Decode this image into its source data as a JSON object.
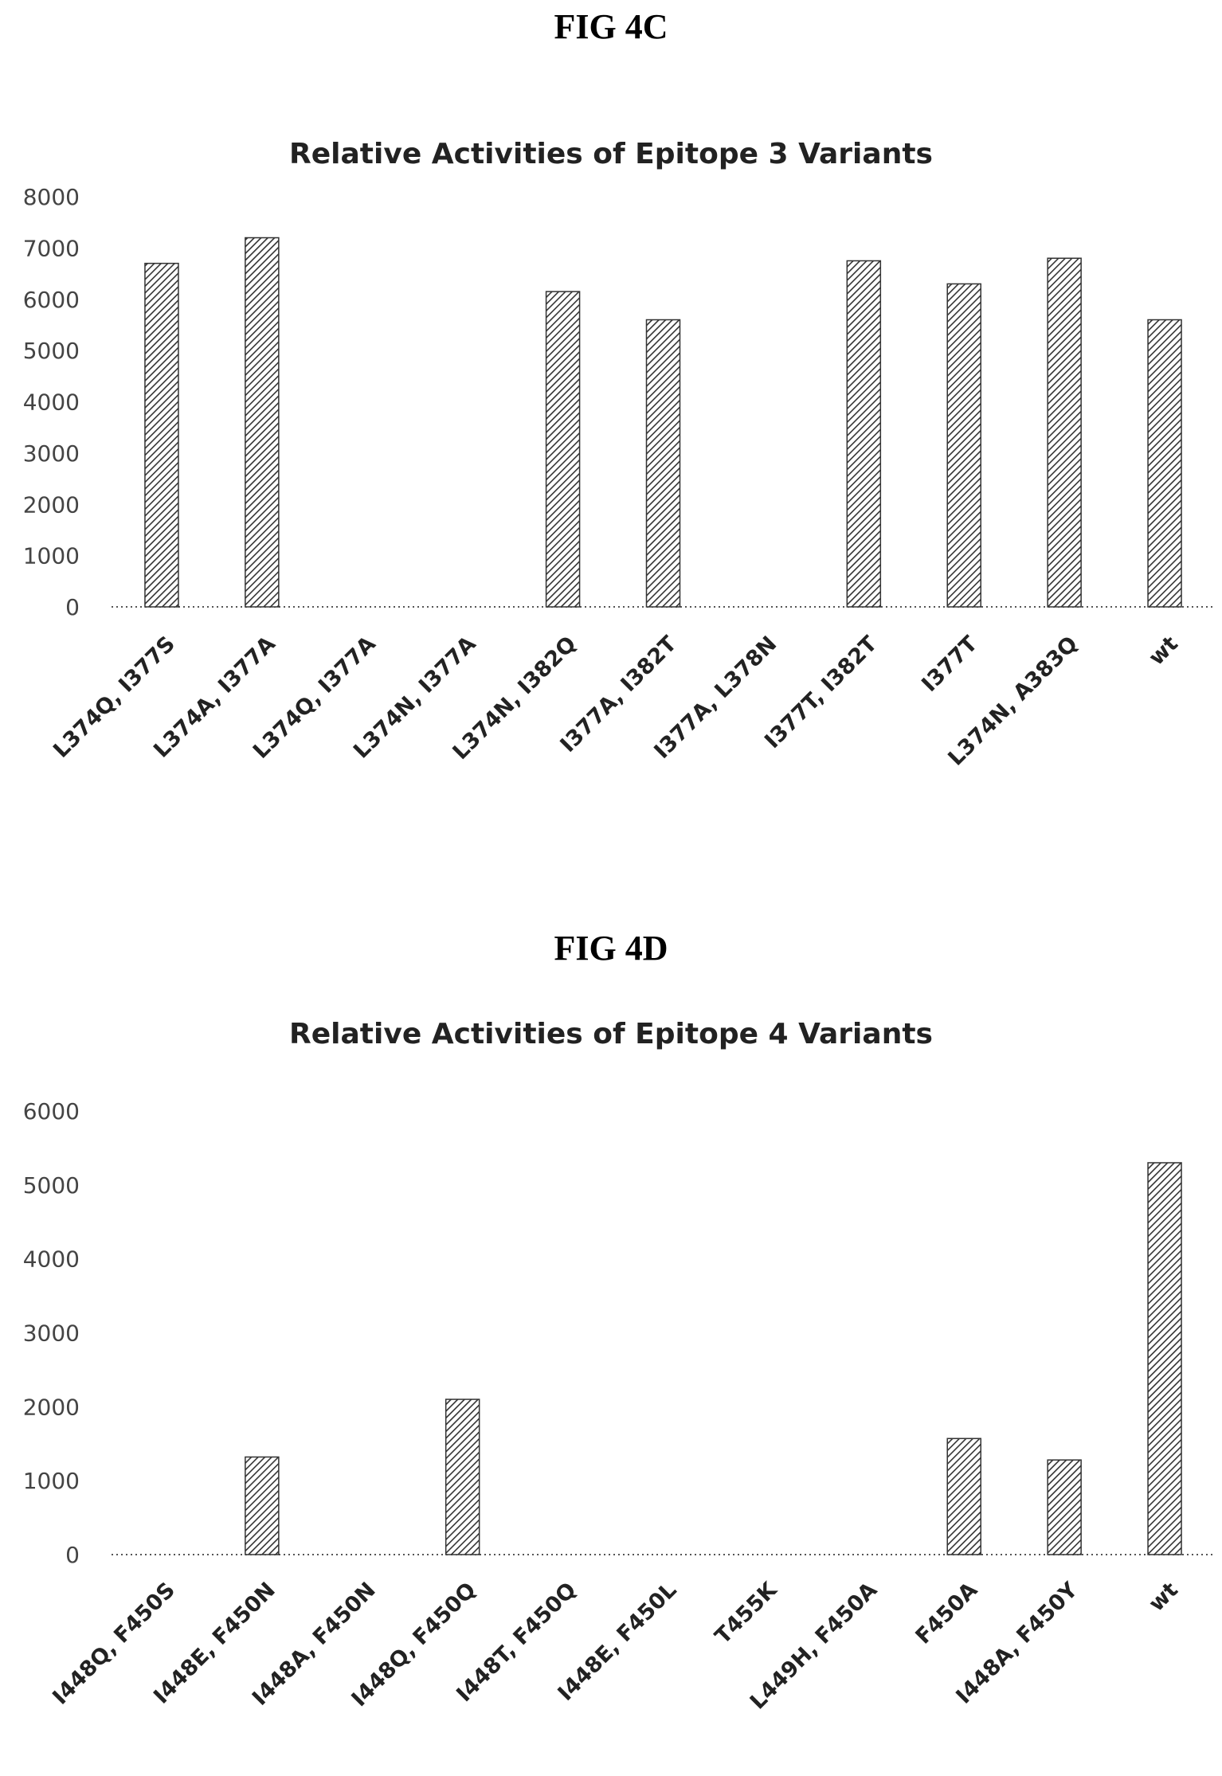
{
  "figures": [
    {
      "label": "FIG 4C"
    },
    {
      "label": "FIG 4D"
    }
  ],
  "colors": {
    "bar_pattern": "#333333",
    "background": "#ffffff",
    "axis": "#555555"
  },
  "chart_data": [
    {
      "type": "bar",
      "title": "Relative Activities of Epitope 3 Variants",
      "xlabel": "",
      "ylabel": "",
      "ylim": [
        0,
        8000
      ],
      "yticks": [
        0,
        1000,
        2000,
        3000,
        4000,
        5000,
        6000,
        7000,
        8000
      ],
      "grid": false,
      "bar_fill": "diagonal-hatch",
      "categories": [
        "L374Q, I377S",
        "L374A, I377A",
        "L374Q, I377A",
        "L374N, I377A",
        "L374N, I382Q",
        "I377A, I382T",
        "I377A, L378N",
        "I377T, I382T",
        "I377T",
        "L374N, A383Q",
        "wt"
      ],
      "values": [
        6700,
        7200,
        0,
        0,
        6150,
        5600,
        0,
        6750,
        6300,
        6800,
        5600
      ]
    },
    {
      "type": "bar",
      "title": "Relative Activities of Epitope 4 Variants",
      "xlabel": "",
      "ylabel": "",
      "ylim": [
        0,
        6000
      ],
      "yticks": [
        0,
        1000,
        2000,
        3000,
        4000,
        5000,
        6000
      ],
      "grid": false,
      "bar_fill": "diagonal-hatch",
      "categories": [
        "I448Q, F450S",
        "I448E, F450N",
        "I448A, F450N",
        "I448Q, F450Q",
        "I448T, F450Q",
        "I448E, F450L",
        "T455K",
        "L449H, F450A",
        "F450A",
        "I448A, F450Y",
        "wt"
      ],
      "values": [
        0,
        1320,
        0,
        2100,
        0,
        0,
        0,
        0,
        1570,
        1280,
        5300
      ]
    }
  ]
}
